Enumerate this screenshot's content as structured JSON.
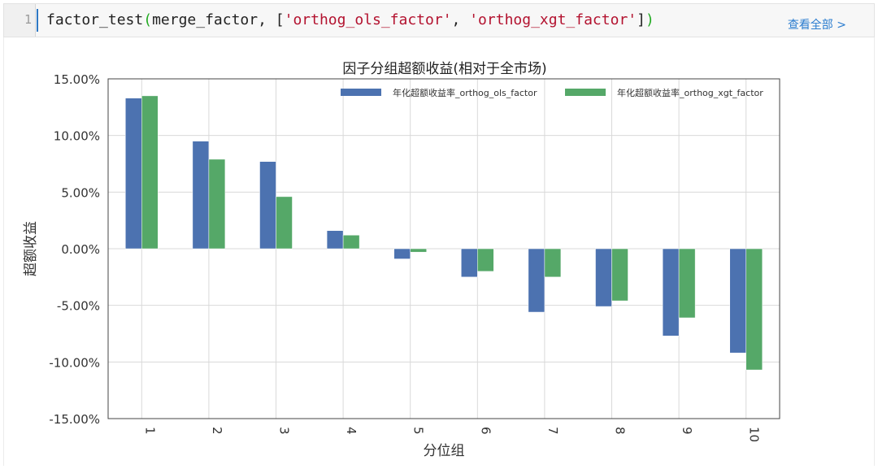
{
  "editor": {
    "line_number": "1",
    "code_prefix": "factor_test",
    "code_open_paren": "(",
    "code_args_a": "merge_factor, [",
    "code_str1": "'orthog_ols_factor'",
    "code_sep": ", ",
    "code_str2": "'orthog_xgt_factor'",
    "code_close_bracket": "]",
    "code_close_paren": ")",
    "view_all_label": "查看全部 >"
  },
  "chart_data": {
    "type": "bar",
    "title": "因子分组超额收益(相对于全市场)",
    "xlabel": "分位组",
    "ylabel": "超额收益",
    "categories": [
      "1",
      "2",
      "3",
      "4",
      "5",
      "6",
      "7",
      "8",
      "9",
      "10"
    ],
    "series": [
      {
        "name": "年化超额收益率_orthog_ols_factor",
        "color": "#4c72b0",
        "values": [
          13.3,
          9.5,
          7.7,
          1.6,
          -0.9,
          -2.5,
          -5.6,
          -5.1,
          -7.7,
          -9.2
        ]
      },
      {
        "name": "年化超额收益率_orthog_xgt_factor",
        "color": "#55a868",
        "values": [
          13.5,
          7.9,
          4.6,
          1.2,
          -0.3,
          -2.0,
          -2.5,
          -4.6,
          -6.1,
          -10.7
        ]
      }
    ],
    "ylim": [
      -15,
      15
    ],
    "yticks": [
      15,
      10,
      5,
      0,
      -5,
      -10,
      -15
    ],
    "ytick_labels": [
      "15.00%",
      "10.00%",
      "5.00%",
      "0.00%",
      "-5.00%",
      "-10.00%",
      "-15.00%"
    ],
    "grid": true,
    "legend_position": "top-right"
  }
}
